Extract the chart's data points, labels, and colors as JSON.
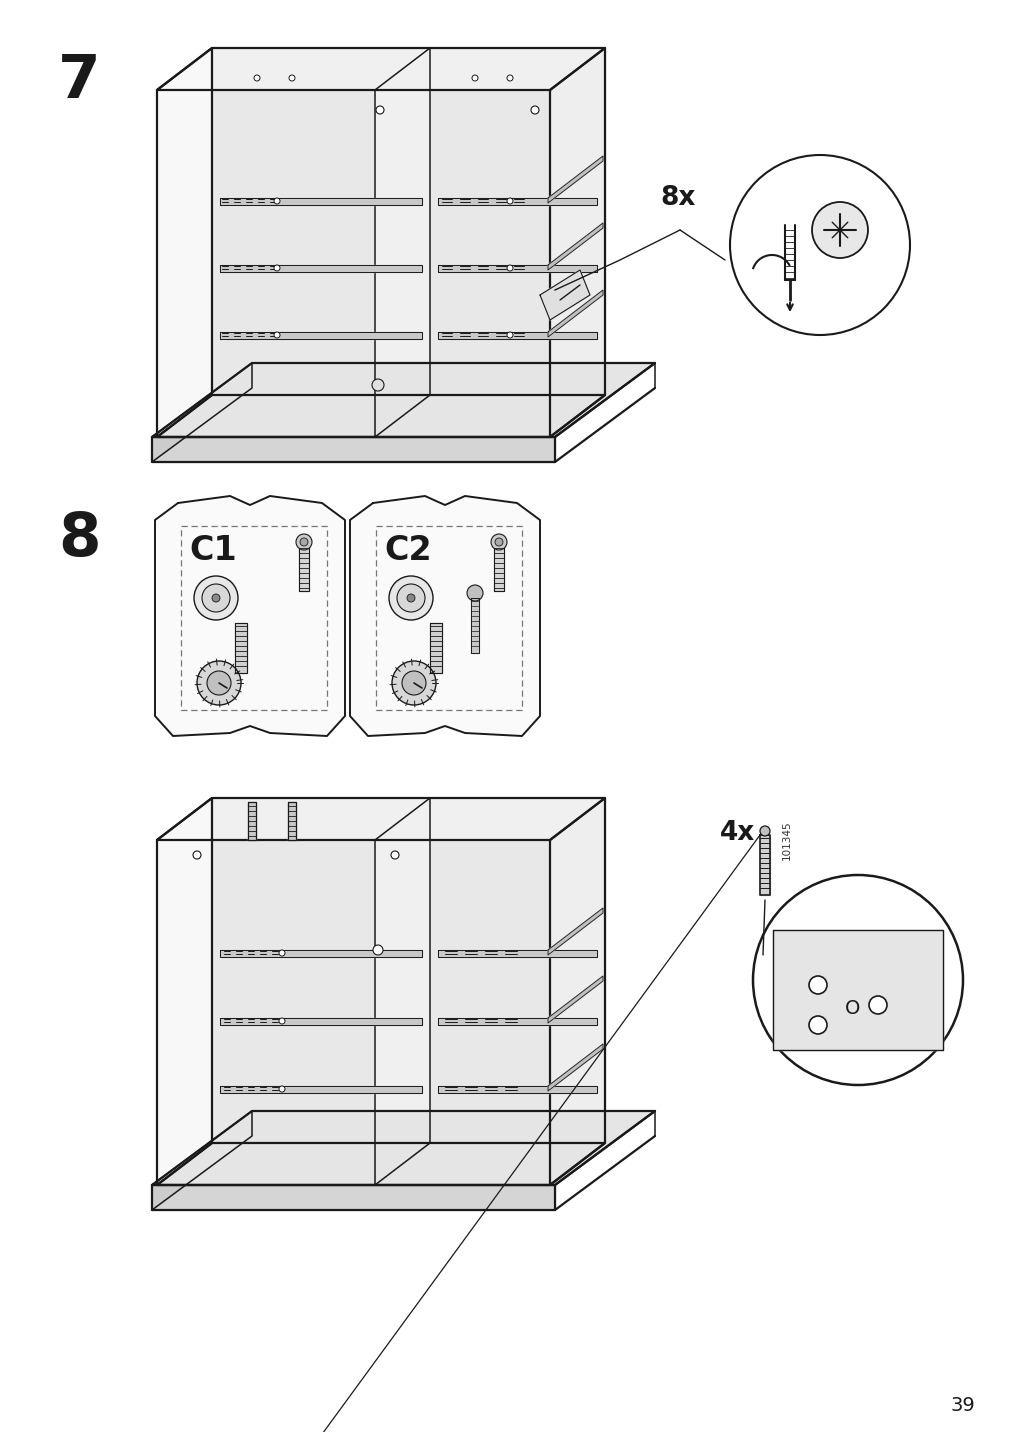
{
  "page_number": "39",
  "background_color": "#ffffff",
  "line_color": "#1a1a1a",
  "step7_number": "7",
  "step8_number": "8",
  "step7_label_8x": "8x",
  "step8_label_4x": "4x",
  "step8_label_101345": "101345",
  "step8_c1_label": "C1",
  "step8_c2_label": "C2",
  "fig_width": 10.12,
  "fig_height": 14.32,
  "dpi": 100
}
